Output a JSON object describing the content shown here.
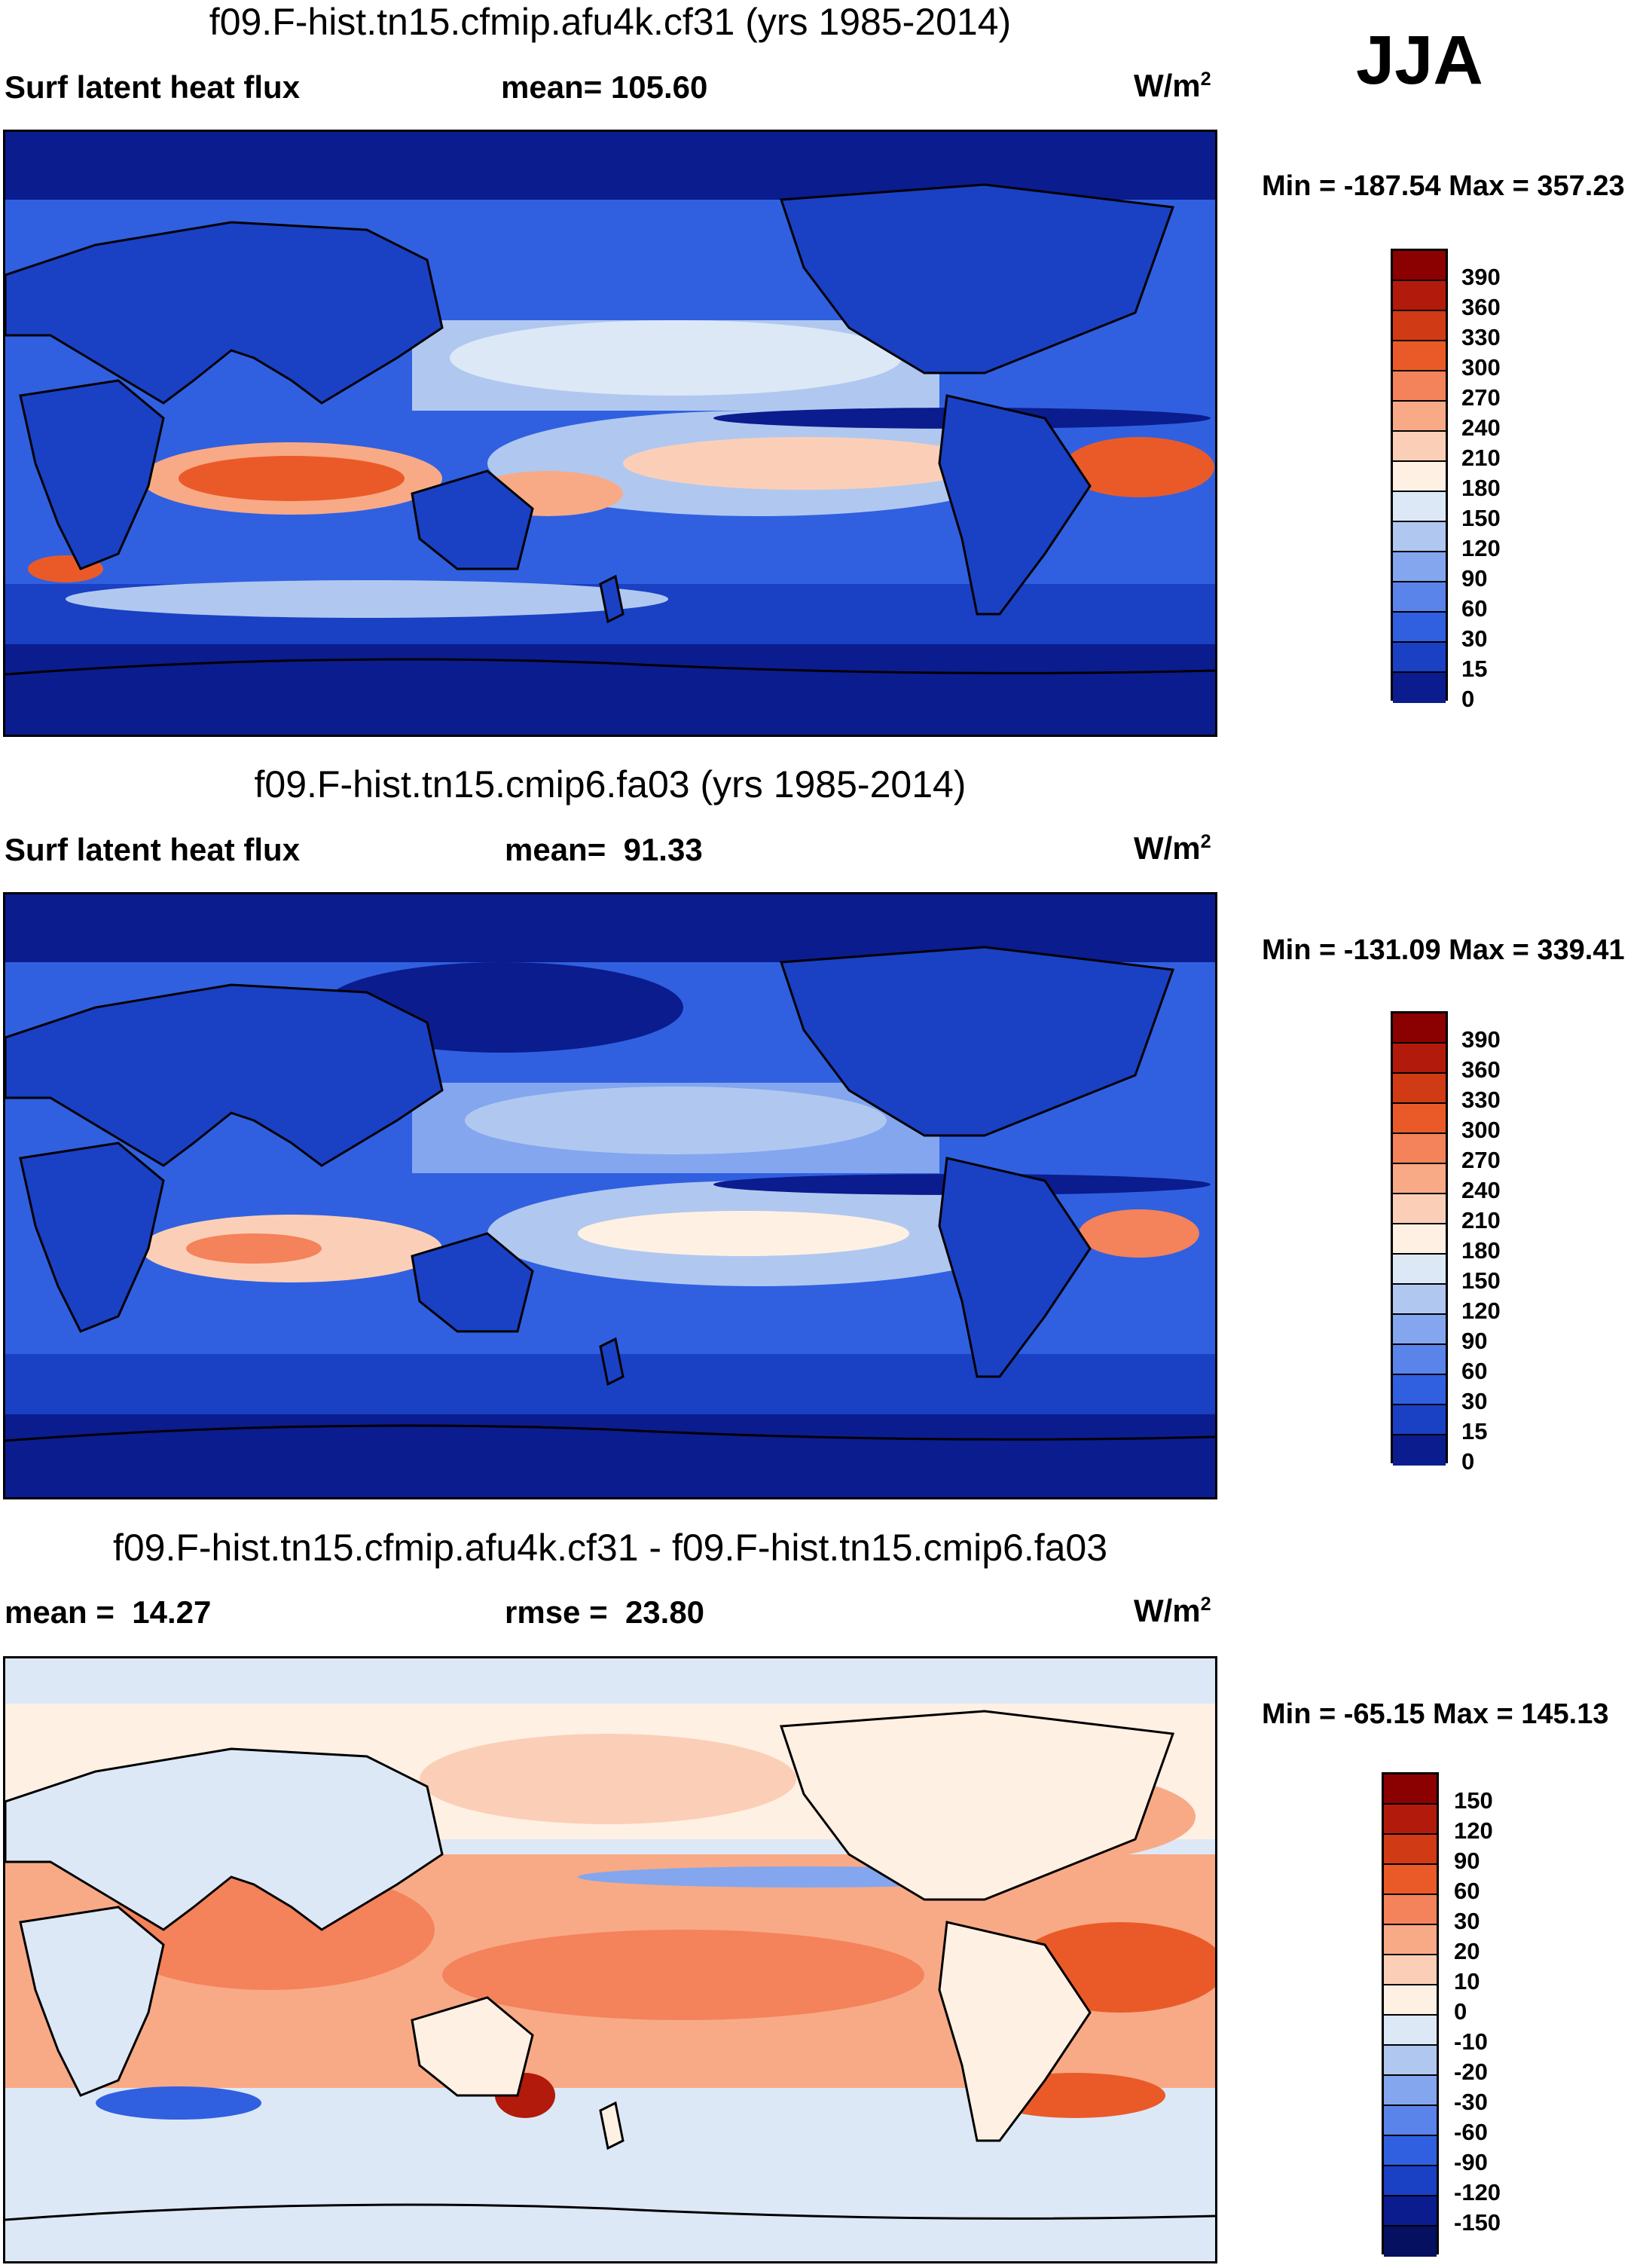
{
  "season": "JJA",
  "panels": [
    {
      "id": "top",
      "title": "f09.F-hist.tn15.cfmip.afu4k.cf31 (yrs 1985-2014)",
      "left_text": "Surf latent heat flux",
      "mid_text": "mean= 105.60",
      "units_base": "W/m",
      "units_sup": "2",
      "minmax": "Min = -187.54 Max = 357.23",
      "colorbar": {
        "labels": [
          "390",
          "360",
          "330",
          "300",
          "270",
          "240",
          "210",
          "180",
          "150",
          "120",
          "90",
          "60",
          "30",
          "15",
          "0"
        ],
        "colors": [
          "#8b0000",
          "#b21a0c",
          "#d03a14",
          "#ea5a28",
          "#f4825a",
          "#f8aa86",
          "#fbcfb7",
          "#fff0e4",
          "#dde8f7",
          "#b0c8f0",
          "#83a6ef",
          "#5a84ea",
          "#3060e0",
          "#1a40c4",
          "#0a1c8e"
        ]
      }
    },
    {
      "id": "middle",
      "title": "f09.F-hist.tn15.cmip6.fa03 (yrs 1985-2014)",
      "left_text": "Surf latent heat flux",
      "mid_text": "mean=  91.33",
      "units_base": "W/m",
      "units_sup": "2",
      "minmax": "Min = -131.09 Max = 339.41",
      "colorbar": {
        "labels": [
          "390",
          "360",
          "330",
          "300",
          "270",
          "240",
          "210",
          "180",
          "150",
          "120",
          "90",
          "60",
          "30",
          "15",
          "0"
        ],
        "colors": [
          "#8b0000",
          "#b21a0c",
          "#d03a14",
          "#ea5a28",
          "#f4825a",
          "#f8aa86",
          "#fbcfb7",
          "#fff0e4",
          "#dde8f7",
          "#b0c8f0",
          "#83a6ef",
          "#5a84ea",
          "#3060e0",
          "#1a40c4",
          "#0a1c8e"
        ]
      }
    },
    {
      "id": "bottom",
      "title": "f09.F-hist.tn15.cfmip.afu4k.cf31 - f09.F-hist.tn15.cmip6.fa03",
      "left_text": "mean =  14.27",
      "mid_text": "rmse =  23.80",
      "units_base": "W/m",
      "units_sup": "2",
      "minmax": "Min = -65.15 Max = 145.13",
      "colorbar": {
        "labels": [
          "150",
          "120",
          "90",
          "60",
          "30",
          "20",
          "10",
          "0",
          "-10",
          "-20",
          "-30",
          "-60",
          "-90",
          "-120",
          "-150"
        ],
        "colors": [
          "#8b0000",
          "#b21a0c",
          "#d03a14",
          "#ea5a28",
          "#f4825a",
          "#f8aa86",
          "#fbcfb7",
          "#fff0e4",
          "#dde8f7",
          "#b0c8f0",
          "#83a6ef",
          "#5a84ea",
          "#3060e0",
          "#1a40c4",
          "#0a1c8e",
          "#061060"
        ]
      }
    }
  ],
  "map_colors": {
    "deep_blue": "#0a1c8e",
    "mid_blue": "#3060e0",
    "light_blue": "#83a6ef",
    "pale_blue": "#dde8f7",
    "pale": "#fff0e4",
    "light_red": "#f8aa86",
    "red": "#ea5a28",
    "dark_red": "#b21a0c",
    "coast": "#000000"
  }
}
